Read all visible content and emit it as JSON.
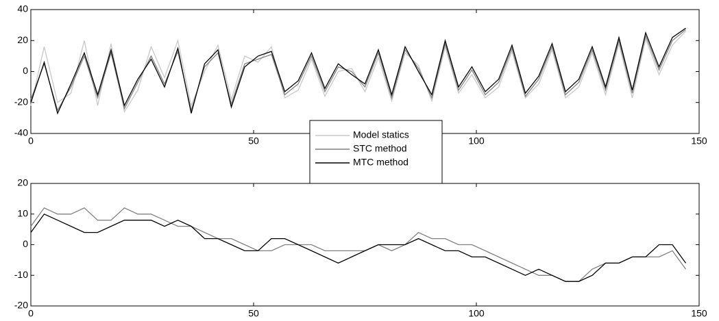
{
  "chart_data": [
    {
      "type": "line",
      "x": [
        0,
        3,
        6,
        9,
        12,
        15,
        18,
        21,
        24,
        27,
        30,
        33,
        36,
        39,
        42,
        45,
        48,
        51,
        54,
        57,
        60,
        63,
        66,
        69,
        72,
        75,
        78,
        81,
        84,
        87,
        90,
        93,
        96,
        99,
        102,
        105,
        108,
        111,
        114,
        117,
        120,
        123,
        126,
        129,
        132,
        135,
        138,
        141,
        144,
        147
      ],
      "series": [
        {
          "name": "Model statics",
          "color": "#c8c8c8",
          "values": [
            -22,
            16,
            -20,
            -14,
            20,
            -22,
            18,
            -26,
            -12,
            16,
            -4,
            20,
            -22,
            0,
            17,
            -18,
            10,
            6,
            16,
            -17,
            -12,
            8,
            -16,
            0,
            2,
            -13,
            9,
            -19,
            12,
            4,
            -19,
            16,
            -14,
            -2,
            -17,
            -10,
            13,
            -17,
            -8,
            14,
            -17,
            -10,
            12,
            -15,
            18,
            -17,
            21,
            -2,
            17,
            26
          ]
        },
        {
          "name": "STC method",
          "color": "#808080",
          "values": [
            -18,
            5,
            -25,
            -10,
            10,
            -17,
            12,
            -24,
            -7,
            10,
            -8,
            13,
            -25,
            3,
            12,
            -21,
            5,
            8,
            11,
            -15,
            -8,
            10,
            -13,
            3,
            0,
            -10,
            12,
            -17,
            14,
            2,
            -17,
            18,
            -12,
            1,
            -15,
            -7,
            15,
            -16,
            -5,
            16,
            -15,
            -7,
            14,
            -12,
            20,
            -14,
            23,
            1,
            20,
            27
          ]
        },
        {
          "name": "MTC method",
          "color": "#000000",
          "values": [
            -20,
            6,
            -27,
            -8,
            12,
            -15,
            14,
            -22,
            -5,
            8,
            -10,
            15,
            -27,
            5,
            14,
            -23,
            3,
            10,
            13,
            -13,
            -6,
            12,
            -11,
            5,
            -2,
            -8,
            14,
            -15,
            16,
            0,
            -15,
            20,
            -10,
            3,
            -13,
            -5,
            17,
            -14,
            -3,
            18,
            -13,
            -5,
            16,
            -10,
            22,
            -12,
            25,
            3,
            22,
            28
          ]
        }
      ],
      "xlim": [
        0,
        150
      ],
      "xticks": [
        0,
        50,
        100,
        150
      ],
      "ylim": [
        -40,
        40
      ],
      "yticks": [
        -40,
        -20,
        0,
        20,
        40
      ]
    },
    {
      "type": "line",
      "x": [
        0,
        3,
        6,
        9,
        12,
        15,
        18,
        21,
        24,
        27,
        30,
        33,
        36,
        39,
        42,
        45,
        48,
        51,
        54,
        57,
        60,
        63,
        66,
        69,
        72,
        75,
        78,
        81,
        84,
        87,
        90,
        93,
        96,
        99,
        102,
        105,
        108,
        111,
        114,
        117,
        120,
        123,
        126,
        129,
        132,
        135,
        138,
        141,
        144,
        147
      ],
      "series": [
        {
          "color": "#808080",
          "values": [
            6,
            12,
            10,
            10,
            12,
            8,
            8,
            12,
            10,
            10,
            8,
            6,
            6,
            4,
            2,
            2,
            0,
            -2,
            -2,
            0,
            0,
            0,
            -2,
            -2,
            -2,
            -2,
            0,
            -2,
            0,
            4,
            2,
            2,
            0,
            0,
            -2,
            -4,
            -6,
            -8,
            -10,
            -10,
            -12,
            -12,
            -8,
            -6,
            -6,
            -4,
            -4,
            -4,
            -2,
            -8
          ]
        },
        {
          "color": "#000000",
          "values": [
            4,
            10,
            8,
            6,
            4,
            4,
            6,
            8,
            8,
            8,
            6,
            8,
            6,
            2,
            2,
            0,
            -2,
            -2,
            2,
            2,
            0,
            -2,
            -4,
            -6,
            -4,
            -2,
            0,
            0,
            0,
            2,
            0,
            -2,
            -2,
            -4,
            -4,
            -6,
            -8,
            -10,
            -8,
            -10,
            -12,
            -12,
            -10,
            -6,
            -6,
            -4,
            -4,
            0,
            0,
            -6
          ]
        }
      ],
      "xlim": [
        0,
        150
      ],
      "xticks": [
        0,
        50,
        100,
        150
      ],
      "ylim": [
        -20,
        20
      ],
      "yticks": [
        -20,
        -10,
        0,
        10,
        20
      ]
    }
  ]
}
